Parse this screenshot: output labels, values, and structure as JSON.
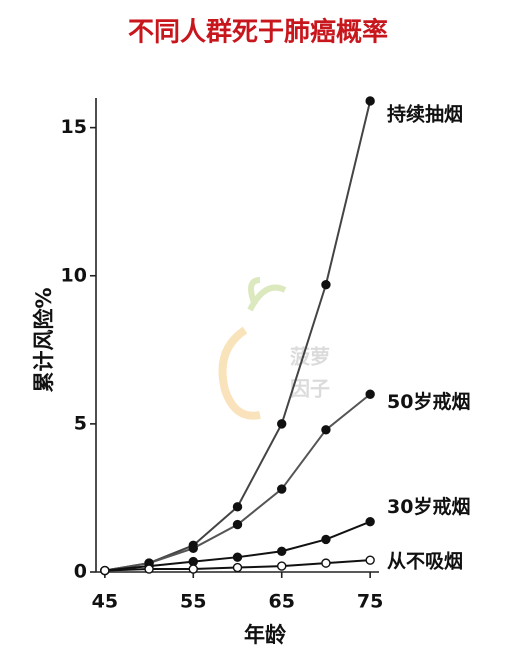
{
  "chart_data": {
    "type": "line",
    "title": "不同人群死于肺癌概率",
    "x_label": "年龄",
    "y_label": "累计风险%",
    "watermark": [
      "菠萝",
      "因子"
    ],
    "x": [
      45,
      50,
      55,
      60,
      65,
      70,
      75
    ],
    "series": [
      {
        "name": "持续抽烟",
        "color": "#444",
        "marker_fill": "#111",
        "values": [
          0.05,
          0.3,
          0.9,
          2.2,
          5.0,
          9.7,
          15.9
        ]
      },
      {
        "name": "50岁戒烟",
        "color": "#555",
        "marker_fill": "#111",
        "values": [
          0.05,
          0.3,
          0.8,
          1.6,
          2.8,
          4.8,
          6.0
        ]
      },
      {
        "name": "30岁戒烟",
        "color": "#111",
        "marker_fill": "#111",
        "values": [
          0.05,
          0.2,
          0.35,
          0.5,
          0.7,
          1.1,
          1.7
        ]
      },
      {
        "name": "从不吸烟",
        "color": "#111",
        "marker_fill": "#fff",
        "values": [
          0.05,
          0.1,
          0.1,
          0.15,
          0.2,
          0.3,
          0.4
        ]
      }
    ],
    "xlim": [
      44,
      76
    ],
    "xticks": [
      45,
      55,
      65,
      75
    ],
    "ylim": [
      0,
      16
    ],
    "yticks": [
      0,
      5,
      10,
      15
    ]
  }
}
